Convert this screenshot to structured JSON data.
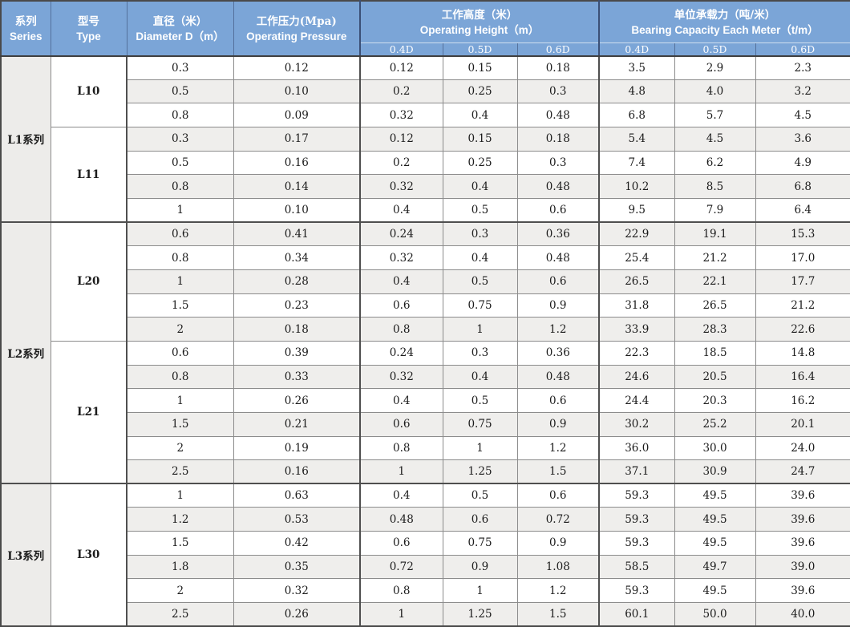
{
  "table": {
    "header": {
      "series": {
        "zh": "系列",
        "en": "Series"
      },
      "type": {
        "zh": "型号",
        "en": "Type"
      },
      "diameter": {
        "zh": "直径（米）",
        "en": "Diameter D（m）"
      },
      "pressure": {
        "zh": "工作压力(Mpa)",
        "en": "Operating Pressure"
      },
      "height_group": {
        "zh": "工作高度（米）",
        "en": "Operating Height（m）"
      },
      "bearing_group": {
        "zh": "单位承载力（吨/米）",
        "en": "Bearing Capacity Each Meter（t/m）"
      },
      "sub_columns": [
        "0.4D",
        "0.5D",
        "0.6D"
      ]
    },
    "columns_order": [
      "diameter",
      "pressure",
      "height_0.4D",
      "height_0.5D",
      "height_0.6D",
      "bearing_0.4D",
      "bearing_0.5D",
      "bearing_0.6D"
    ],
    "series_blocks": [
      {
        "series": "L1系列",
        "types": [
          {
            "type": "L10",
            "rows": [
              [
                "0.3",
                "0.12",
                "0.12",
                "0.15",
                "0.18",
                "3.5",
                "2.9",
                "2.3"
              ],
              [
                "0.5",
                "0.10",
                "0.2",
                "0.25",
                "0.3",
                "4.8",
                "4.0",
                "3.2"
              ],
              [
                "0.8",
                "0.09",
                "0.32",
                "0.4",
                "0.48",
                "6.8",
                "5.7",
                "4.5"
              ]
            ]
          },
          {
            "type": "L11",
            "rows": [
              [
                "0.3",
                "0.17",
                "0.12",
                "0.15",
                "0.18",
                "5.4",
                "4.5",
                "3.6"
              ],
              [
                "0.5",
                "0.16",
                "0.2",
                "0.25",
                "0.3",
                "7.4",
                "6.2",
                "4.9"
              ],
              [
                "0.8",
                "0.14",
                "0.32",
                "0.4",
                "0.48",
                "10.2",
                "8.5",
                "6.8"
              ],
              [
                "1",
                "0.10",
                "0.4",
                "0.5",
                "0.6",
                "9.5",
                "7.9",
                "6.4"
              ]
            ]
          }
        ]
      },
      {
        "series": "L2系列",
        "types": [
          {
            "type": "L20",
            "rows": [
              [
                "0.6",
                "0.41",
                "0.24",
                "0.3",
                "0.36",
                "22.9",
                "19.1",
                "15.3"
              ],
              [
                "0.8",
                "0.34",
                "0.32",
                "0.4",
                "0.48",
                "25.4",
                "21.2",
                "17.0"
              ],
              [
                "1",
                "0.28",
                "0.4",
                "0.5",
                "0.6",
                "26.5",
                "22.1",
                "17.7"
              ],
              [
                "1.5",
                "0.23",
                "0.6",
                "0.75",
                "0.9",
                "31.8",
                "26.5",
                "21.2"
              ],
              [
                "2",
                "0.18",
                "0.8",
                "1",
                "1.2",
                "33.9",
                "28.3",
                "22.6"
              ]
            ]
          },
          {
            "type": "L21",
            "rows": [
              [
                "0.6",
                "0.39",
                "0.24",
                "0.3",
                "0.36",
                "22.3",
                "18.5",
                "14.8"
              ],
              [
                "0.8",
                "0.33",
                "0.32",
                "0.4",
                "0.48",
                "24.6",
                "20.5",
                "16.4"
              ],
              [
                "1",
                "0.26",
                "0.4",
                "0.5",
                "0.6",
                "24.4",
                "20.3",
                "16.2"
              ],
              [
                "1.5",
                "0.21",
                "0.6",
                "0.75",
                "0.9",
                "30.2",
                "25.2",
                "20.1"
              ],
              [
                "2",
                "0.19",
                "0.8",
                "1",
                "1.2",
                "36.0",
                "30.0",
                "24.0"
              ],
              [
                "2.5",
                "0.16",
                "1",
                "1.25",
                "1.5",
                "37.1",
                "30.9",
                "24.7"
              ]
            ]
          }
        ]
      },
      {
        "series": "L3系列",
        "types": [
          {
            "type": "L30",
            "rows": [
              [
                "1",
                "0.63",
                "0.4",
                "0.5",
                "0.6",
                "59.3",
                "49.5",
                "39.6"
              ],
              [
                "1.2",
                "0.53",
                "0.48",
                "0.6",
                "0.72",
                "59.3",
                "49.5",
                "39.6"
              ],
              [
                "1.5",
                "0.42",
                "0.6",
                "0.75",
                "0.9",
                "59.3",
                "49.5",
                "39.6"
              ],
              [
                "1.8",
                "0.35",
                "0.72",
                "0.9",
                "1.08",
                "58.5",
                "49.7",
                "39.0"
              ],
              [
                "2",
                "0.32",
                "0.8",
                "1",
                "1.2",
                "59.3",
                "49.5",
                "39.6"
              ],
              [
                "2.5",
                "0.26",
                "1",
                "1.25",
                "1.5",
                "60.1",
                "50.0",
                "40.0"
              ]
            ]
          }
        ]
      }
    ],
    "colors": {
      "header_bg": "#7ba5d7",
      "header_text": "#ffffff",
      "row_bg": "#ffffff",
      "row_alt_bg": "#efeeec",
      "series_col_bg": "#edecea",
      "border": "#8c8c8c",
      "border_dark": "#4a4a4a",
      "text": "#1b1b1b"
    }
  }
}
